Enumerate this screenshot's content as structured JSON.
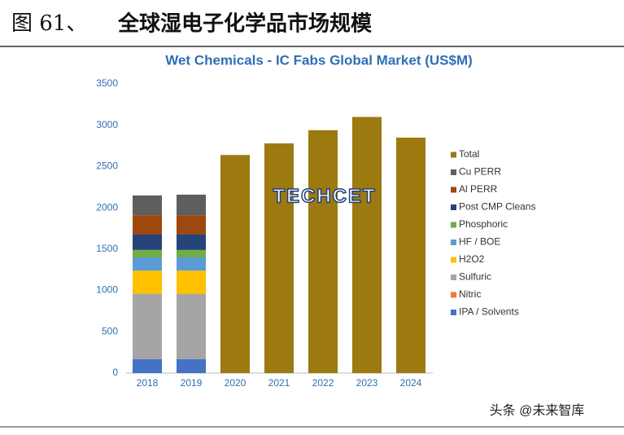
{
  "header": {
    "figure": "图 61、",
    "title": "全球湿电子化学品市场规模"
  },
  "watermark": "TECHCET",
  "footer": "头条 @未来智库",
  "chart_data": {
    "type": "stacked-bar",
    "title": "Wet Chemicals - IC Fabs Global Market (US$M)",
    "categories": [
      "2018",
      "2019",
      "2020",
      "2021",
      "2022",
      "2023",
      "2024"
    ],
    "series": [
      {
        "name": "IPA / Solvents",
        "color": "#4472c4",
        "values": [
          170,
          170,
          null,
          null,
          null,
          null,
          null
        ]
      },
      {
        "name": "Nitric",
        "color": "#ed7d31",
        "values": [
          0,
          0,
          null,
          null,
          null,
          null,
          null
        ]
      },
      {
        "name": "Sulfuric",
        "color": "#a5a5a5",
        "values": [
          790,
          790,
          null,
          null,
          null,
          null,
          null
        ]
      },
      {
        "name": "H2O2",
        "color": "#ffc000",
        "values": [
          280,
          280,
          null,
          null,
          null,
          null,
          null
        ]
      },
      {
        "name": "HF / BOE",
        "color": "#5b9bd5",
        "values": [
          160,
          160,
          null,
          null,
          null,
          null,
          null
        ]
      },
      {
        "name": "Phosphoric",
        "color": "#70ad47",
        "values": [
          90,
          90,
          null,
          null,
          null,
          null,
          null
        ]
      },
      {
        "name": "Post CMP Cleans",
        "color": "#264478",
        "values": [
          190,
          190,
          null,
          null,
          null,
          null,
          null
        ]
      },
      {
        "name": "Al PERR",
        "color": "#9e480e",
        "values": [
          230,
          230,
          null,
          null,
          null,
          null,
          null
        ]
      },
      {
        "name": "Cu PERR",
        "color": "#5e5e5e",
        "values": [
          240,
          250,
          null,
          null,
          null,
          null,
          null
        ]
      },
      {
        "name": "Total",
        "color": "#9c7a10",
        "values": [
          null,
          null,
          2640,
          2780,
          2940,
          3100,
          2850
        ]
      }
    ],
    "ylim": [
      0,
      3500
    ],
    "yticks": [
      0,
      500,
      1000,
      1500,
      2000,
      2500,
      3000,
      3500
    ],
    "grid": false,
    "legend": "right"
  }
}
